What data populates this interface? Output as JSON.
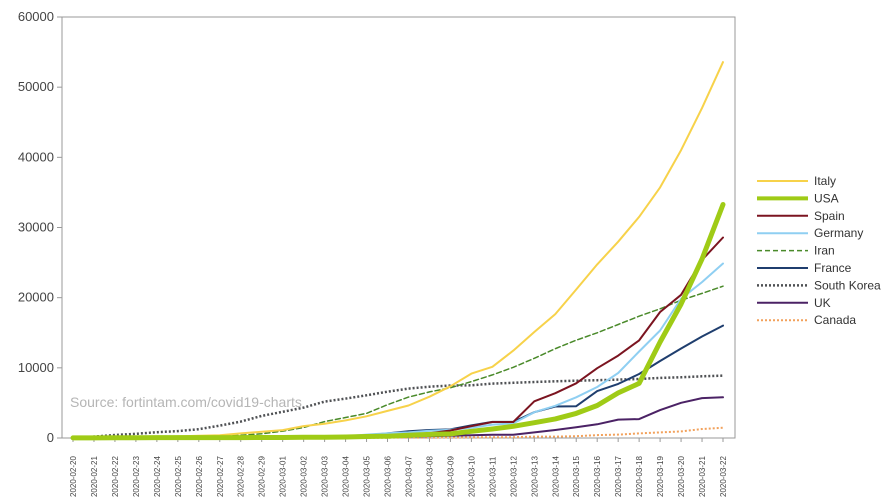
{
  "chart_data": {
    "type": "line",
    "title": "",
    "xlabel": "",
    "ylabel": "",
    "ylim": [
      0,
      60000
    ],
    "yticks": [
      0,
      10000,
      20000,
      30000,
      40000,
      50000,
      60000
    ],
    "grid": false,
    "legend_position": "right",
    "watermark": "Source: fortintam.com/covid19-charts",
    "categories": [
      "2020-02-20",
      "2020-02-21",
      "2020-02-22",
      "2020-02-23",
      "2020-02-24",
      "2020-02-25",
      "2020-02-26",
      "2020-02-27",
      "2020-02-28",
      "2020-02-29",
      "2020-03-01",
      "2020-03-02",
      "2020-03-03",
      "2020-03-04",
      "2020-03-05",
      "2020-03-06",
      "2020-03-07",
      "2020-03-08",
      "2020-03-09",
      "2020-03-10",
      "2020-03-11",
      "2020-03-12",
      "2020-03-13",
      "2020-03-14",
      "2020-03-15",
      "2020-03-16",
      "2020-03-17",
      "2020-03-18",
      "2020-03-19",
      "2020-03-20",
      "2020-03-21",
      "2020-03-22"
    ],
    "series": [
      {
        "name": "Italy",
        "color": "#f7d24a",
        "style": "solid",
        "width": 2,
        "values": [
          3,
          3,
          20,
          79,
          150,
          229,
          322,
          400,
          650,
          890,
          1128,
          1694,
          2036,
          2502,
          3089,
          3858,
          4636,
          5883,
          7375,
          9172,
          10149,
          12462,
          15113,
          17660,
          21157,
          24747,
          27980,
          31506,
          35713,
          41035,
          47021,
          53578
        ]
      },
      {
        "name": "USA",
        "color": "#9fcb16",
        "style": "solid",
        "width": 5,
        "values": [
          15,
          15,
          35,
          35,
          53,
          57,
          60,
          60,
          62,
          68,
          74,
          98,
          118,
          149,
          217,
          262,
          402,
          518,
          583,
          959,
          1281,
          1663,
          2179,
          2726,
          3499,
          4632,
          6421,
          7786,
          13680,
          19101,
          25493,
          33276
        ]
      },
      {
        "name": "Spain",
        "color": "#7b1420",
        "style": "solid",
        "width": 2,
        "values": [
          2,
          2,
          2,
          2,
          2,
          6,
          13,
          15,
          32,
          45,
          84,
          120,
          165,
          222,
          259,
          400,
          500,
          673,
          1073,
          1695,
          2277,
          2277,
          5232,
          6391,
          7798,
          9942,
          11748,
          13910,
          17963,
          20410,
          25374,
          28572
        ]
      },
      {
        "name": "Germany",
        "color": "#8fcff2",
        "style": "solid",
        "width": 2,
        "values": [
          16,
          16,
          16,
          16,
          16,
          17,
          27,
          46,
          48,
          79,
          130,
          159,
          196,
          262,
          482,
          670,
          799,
          1040,
          1176,
          1457,
          1908,
          2078,
          3675,
          4585,
          5795,
          7272,
          9257,
          12327,
          15320,
          19848,
          22213,
          24873
        ]
      },
      {
        "name": "Iran",
        "color": "#4a8a2a",
        "style": "dashed",
        "width": 1.5,
        "values": [
          5,
          18,
          28,
          43,
          61,
          95,
          139,
          245,
          388,
          593,
          978,
          1501,
          2336,
          2922,
          3513,
          4747,
          5823,
          6566,
          7161,
          8042,
          9000,
          10075,
          11364,
          12729,
          13938,
          14991,
          16169,
          17361,
          18407,
          19644,
          20610,
          21638
        ]
      },
      {
        "name": "France",
        "color": "#1f3e6e",
        "style": "solid",
        "width": 2,
        "values": [
          12,
          12,
          12,
          12,
          12,
          14,
          18,
          38,
          57,
          100,
          130,
          191,
          204,
          288,
          380,
          656,
          959,
          1136,
          1219,
          1794,
          2293,
          2293,
          3681,
          4496,
          4532,
          6683,
          7715,
          9124,
          10970,
          12758,
          14463,
          16018
        ]
      },
      {
        "name": "South Korea",
        "color": "#4f5154",
        "style": "dotted",
        "width": 2.5,
        "values": [
          104,
          204,
          433,
          602,
          833,
          977,
          1261,
          1766,
          2337,
          3150,
          3736,
          4335,
          5186,
          5621,
          6088,
          6593,
          7041,
          7314,
          7478,
          7513,
          7755,
          7869,
          7979,
          8086,
          8162,
          8236,
          8320,
          8413,
          8565,
          8652,
          8799,
          8897
        ]
      },
      {
        "name": "UK",
        "color": "#4b2265",
        "style": "solid",
        "width": 2,
        "values": [
          9,
          9,
          9,
          9,
          13,
          13,
          13,
          15,
          20,
          23,
          36,
          40,
          51,
          85,
          115,
          163,
          206,
          273,
          321,
          382,
          456,
          456,
          798,
          1140,
          1543,
          1950,
          2626,
          2689,
          3983,
          5018,
          5683,
          5800
        ]
      },
      {
        "name": "Canada",
        "color": "#f2a15b",
        "style": "dotted",
        "width": 2,
        "values": [
          8,
          8,
          9,
          9,
          9,
          10,
          11,
          13,
          14,
          20,
          24,
          27,
          30,
          33,
          37,
          49,
          54,
          64,
          77,
          79,
          108,
          117,
          193,
          198,
          252,
          415,
          478,
          657,
          800,
          943,
          1277,
          1469
        ]
      }
    ]
  }
}
